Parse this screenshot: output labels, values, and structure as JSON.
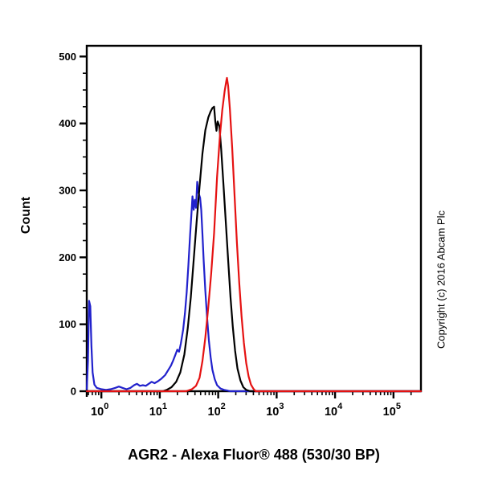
{
  "figure": {
    "copyright": "Copyright (c) 2016 Abcam Plc"
  },
  "chart_data": {
    "type": "line",
    "subtype": "flow-cytometry-histogram",
    "title": "AGR2 - Alexa Fluor® 488 (530/30 BP)",
    "xlabel": "AGR2 - Alexa Fluor® 488 (530/30 BP)",
    "ylabel": "Count",
    "x_scale": "log10",
    "xlim_log10": [
      -0.25,
      5.47
    ],
    "ylim": [
      0,
      516
    ],
    "y_ticks": [
      0,
      100,
      200,
      300,
      400,
      500
    ],
    "y_minor_step": 25,
    "x_major_ticks": [
      {
        "base": "10",
        "exp": 0
      },
      {
        "base": "10",
        "exp": 1
      },
      {
        "base": "10",
        "exp": 2
      },
      {
        "base": "10",
        "exp": 3
      },
      {
        "base": "10",
        "exp": 4
      },
      {
        "base": "10",
        "exp": 5
      }
    ],
    "grid": false,
    "legend": "none",
    "frame_color": "#000000",
    "series": [
      {
        "name": "blue",
        "color": "#2121cc",
        "points": [
          [
            -0.25,
            3
          ],
          [
            -0.23,
            45
          ],
          [
            -0.21,
            135
          ],
          [
            -0.19,
            127
          ],
          [
            -0.17,
            68
          ],
          [
            -0.15,
            28
          ],
          [
            -0.12,
            10
          ],
          [
            -0.08,
            5
          ],
          [
            0.0,
            3
          ],
          [
            0.08,
            2
          ],
          [
            0.16,
            3
          ],
          [
            0.24,
            5
          ],
          [
            0.3,
            7
          ],
          [
            0.36,
            5
          ],
          [
            0.43,
            3
          ],
          [
            0.5,
            5
          ],
          [
            0.56,
            9
          ],
          [
            0.61,
            11
          ],
          [
            0.66,
            8
          ],
          [
            0.71,
            9
          ],
          [
            0.76,
            8
          ],
          [
            0.81,
            11
          ],
          [
            0.86,
            14
          ],
          [
            0.91,
            12
          ],
          [
            0.97,
            15
          ],
          [
            1.03,
            19
          ],
          [
            1.09,
            24
          ],
          [
            1.14,
            31
          ],
          [
            1.19,
            38
          ],
          [
            1.23,
            46
          ],
          [
            1.27,
            55
          ],
          [
            1.3,
            62
          ],
          [
            1.33,
            59
          ],
          [
            1.36,
            71
          ],
          [
            1.4,
            92
          ],
          [
            1.43,
            116
          ],
          [
            1.46,
            148
          ],
          [
            1.49,
            188
          ],
          [
            1.52,
            235
          ],
          [
            1.54,
            263
          ],
          [
            1.56,
            291
          ],
          [
            1.58,
            271
          ],
          [
            1.6,
            286
          ],
          [
            1.62,
            274
          ],
          [
            1.64,
            313
          ],
          [
            1.66,
            297
          ],
          [
            1.69,
            289
          ],
          [
            1.71,
            271
          ],
          [
            1.73,
            235
          ],
          [
            1.75,
            196
          ],
          [
            1.78,
            150
          ],
          [
            1.81,
            110
          ],
          [
            1.84,
            76
          ],
          [
            1.87,
            51
          ],
          [
            1.9,
            32
          ],
          [
            1.94,
            18
          ],
          [
            1.98,
            9
          ],
          [
            2.04,
            4
          ],
          [
            2.1,
            2
          ],
          [
            2.16,
            1
          ],
          [
            2.2,
            0
          ],
          [
            5.47,
            0
          ]
        ]
      },
      {
        "name": "black",
        "color": "#000000",
        "points": [
          [
            -0.25,
            0
          ],
          [
            1.05,
            0
          ],
          [
            1.12,
            2
          ],
          [
            1.2,
            6
          ],
          [
            1.28,
            14
          ],
          [
            1.35,
            28
          ],
          [
            1.42,
            55
          ],
          [
            1.48,
            95
          ],
          [
            1.53,
            140
          ],
          [
            1.58,
            196
          ],
          [
            1.63,
            252
          ],
          [
            1.68,
            306
          ],
          [
            1.73,
            355
          ],
          [
            1.78,
            390
          ],
          [
            1.83,
            409
          ],
          [
            1.87,
            418
          ],
          [
            1.9,
            423
          ],
          [
            1.93,
            425
          ],
          [
            1.95,
            403
          ],
          [
            1.97,
            389
          ],
          [
            1.99,
            403
          ],
          [
            2.02,
            396
          ],
          [
            2.05,
            362
          ],
          [
            2.09,
            308
          ],
          [
            2.13,
            252
          ],
          [
            2.17,
            196
          ],
          [
            2.21,
            141
          ],
          [
            2.25,
            96
          ],
          [
            2.29,
            60
          ],
          [
            2.33,
            34
          ],
          [
            2.38,
            16
          ],
          [
            2.43,
            6
          ],
          [
            2.48,
            2
          ],
          [
            2.55,
            0
          ],
          [
            5.47,
            0
          ]
        ]
      },
      {
        "name": "red",
        "color": "#e51212",
        "points": [
          [
            -0.25,
            0
          ],
          [
            1.45,
            0
          ],
          [
            1.55,
            3
          ],
          [
            1.62,
            8
          ],
          [
            1.68,
            20
          ],
          [
            1.73,
            45
          ],
          [
            1.78,
            80
          ],
          [
            1.83,
            126
          ],
          [
            1.88,
            176
          ],
          [
            1.93,
            236
          ],
          [
            1.98,
            320
          ],
          [
            2.03,
            382
          ],
          [
            2.07,
            420
          ],
          [
            2.11,
            448
          ],
          [
            2.14,
            464
          ],
          [
            2.15,
            468
          ],
          [
            2.17,
            456
          ],
          [
            2.2,
            421
          ],
          [
            2.24,
            362
          ],
          [
            2.28,
            292
          ],
          [
            2.32,
            222
          ],
          [
            2.36,
            162
          ],
          [
            2.4,
            112
          ],
          [
            2.44,
            72
          ],
          [
            2.48,
            42
          ],
          [
            2.52,
            22
          ],
          [
            2.56,
            10
          ],
          [
            2.6,
            4
          ],
          [
            2.64,
            0
          ],
          [
            5.47,
            0
          ]
        ]
      }
    ]
  }
}
